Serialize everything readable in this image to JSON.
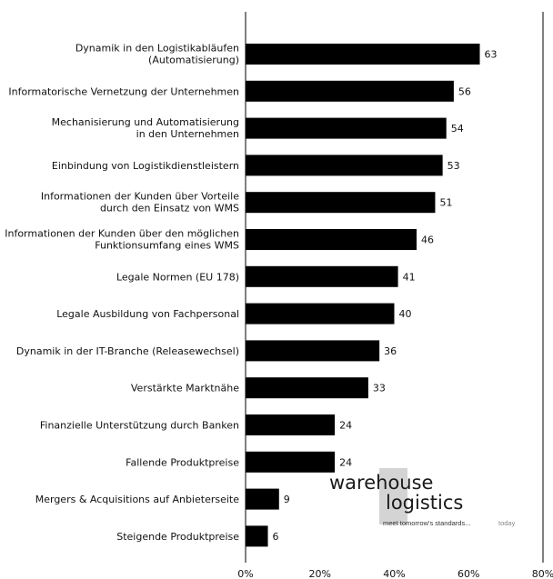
{
  "chart_data": {
    "type": "bar",
    "orientation": "horizontal",
    "categories": [
      [
        "Dynamik in den Logistikabläufen",
        "(Automatisierung)"
      ],
      [
        "Informatorische Vernetzung der Unternehmen"
      ],
      [
        "Mechanisierung und Automatisierung",
        "in den Unternehmen"
      ],
      [
        "Einbindung von Logistikdienstleistern"
      ],
      [
        "Informationen der Kunden über Vorteile",
        "durch den Einsatz von WMS"
      ],
      [
        "Informationen der Kunden über den möglichen",
        "Funktionsumfang eines  WMS"
      ],
      [
        "Legale Normen (EU 178)"
      ],
      [
        "Legale Ausbildung von Fachpersonal"
      ],
      [
        "Dynamik in der IT-Branche (Releasewechsel)"
      ],
      [
        "Verstärkte Marktnähe"
      ],
      [
        "Finanzielle Unterstützung durch Banken"
      ],
      [
        "Fallende Produktpreise"
      ],
      [
        "Mergers & Acquisitions auf Anbieterseite"
      ],
      [
        "Steigende Produktpreise"
      ]
    ],
    "values": [
      63,
      56,
      54,
      53,
      51,
      46,
      41,
      40,
      36,
      33,
      24,
      24,
      9,
      6
    ],
    "value_labels": [
      "63",
      "56",
      "54",
      "53",
      "51",
      "46",
      "41",
      "40",
      "36",
      "33",
      "24",
      "24",
      "9",
      "6"
    ],
    "xlim": [
      0,
      80
    ],
    "x_ticks": [
      "0%",
      "20%",
      "40%",
      "60%",
      "80%"
    ],
    "bar_color": "#000000",
    "grid": false,
    "legend": "none"
  },
  "logo": {
    "line1": "warehouse",
    "line2": "logistics",
    "tagline": "meet tomorrow's standards...",
    "tagline_end": "today"
  }
}
